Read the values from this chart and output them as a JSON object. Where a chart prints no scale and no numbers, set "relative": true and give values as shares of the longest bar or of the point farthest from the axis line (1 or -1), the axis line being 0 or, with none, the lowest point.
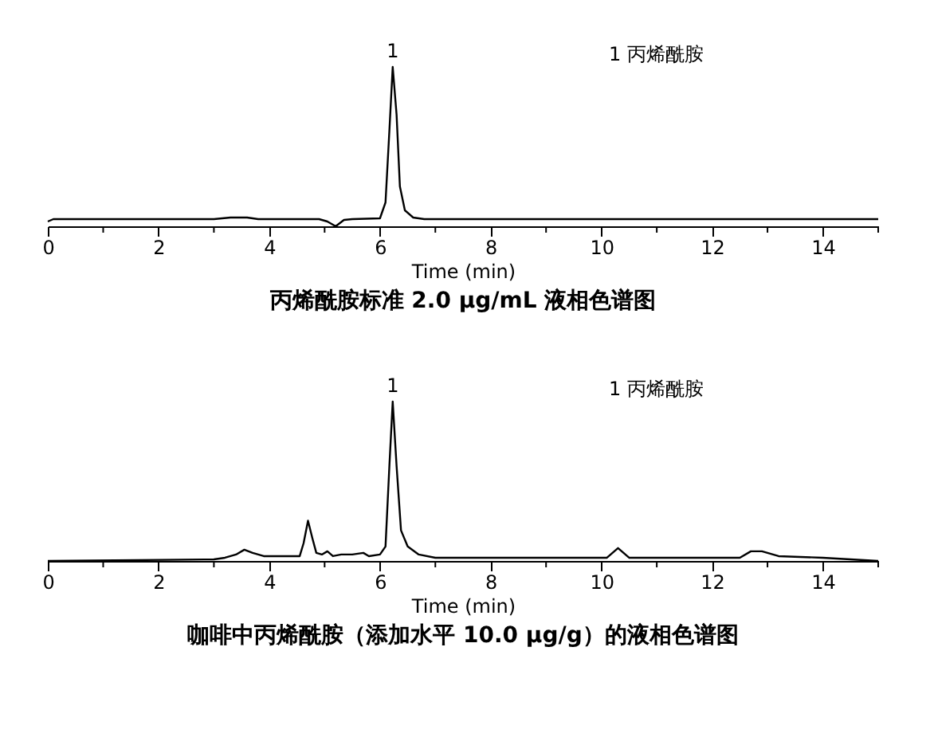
{
  "chart_data": [
    {
      "type": "line",
      "title": "丙烯酰胺标准 2.0 μg/mL 液相色谱图",
      "xlabel": "Time (min)",
      "relative": true,
      "xlim": [
        0,
        15
      ],
      "xticks": [
        0,
        {
          "value": 1,
          "label": null
        },
        2,
        {
          "value": 3,
          "label": null
        },
        4,
        {
          "value": 5,
          "label": null
        },
        6,
        {
          "value": 7,
          "label": null
        },
        8,
        {
          "value": 9,
          "label": null
        },
        10,
        {
          "value": 11,
          "label": null
        },
        12,
        {
          "value": 13,
          "label": null
        },
        14,
        {
          "value": 15,
          "label": null
        }
      ],
      "grid": false,
      "marker": "none",
      "line_style": "solid",
      "annotations": [
        {
          "text": "1",
          "x": 6.23,
          "y": 1
        },
        "1 丙烯酰胺"
      ],
      "series": [
        {
          "color": "#000000",
          "x": [
            0,
            0.1,
            3.0,
            3.3,
            3.6,
            3.8,
            4.9,
            5.05,
            5.2,
            5.35,
            5.5,
            6.0,
            6.1,
            6.17,
            6.23,
            6.3,
            6.36,
            6.45,
            6.6,
            6.8,
            15
          ],
          "values": [
            0.03,
            0.045,
            0.045,
            0.055,
            0.055,
            0.045,
            0.045,
            0.03,
            0,
            0.04,
            0.045,
            0.05,
            0.15,
            0.6,
            1,
            0.7,
            0.25,
            0.1,
            0.055,
            0.045,
            0.045
          ]
        }
      ]
    },
    {
      "type": "line",
      "title": "咖啡中丙烯酰胺（添加水平 10.0 μg/g）的液相色谱图",
      "xlabel": "Time (min)",
      "relative": true,
      "xlim": [
        0,
        15
      ],
      "xticks": [
        0,
        {
          "value": 1,
          "label": null
        },
        2,
        {
          "value": 3,
          "label": null
        },
        4,
        {
          "value": 5,
          "label": null
        },
        6,
        {
          "value": 7,
          "label": null
        },
        8,
        {
          "value": 9,
          "label": null
        },
        10,
        {
          "value": 11,
          "label": null
        },
        12,
        {
          "value": 13,
          "label": null
        },
        14,
        {
          "value": 15,
          "label": null
        }
      ],
      "grid": false,
      "marker": "none",
      "line_style": "solid",
      "annotations": [
        {
          "text": "1",
          "x": 6.23,
          "y": 1
        },
        "1 丙烯酰胺"
      ],
      "series": [
        {
          "color": "#000000",
          "x": [
            0,
            3.0,
            3.2,
            3.4,
            3.55,
            3.7,
            3.9,
            4.55,
            4.62,
            4.7,
            4.78,
            4.85,
            4.95,
            5.05,
            5.15,
            5.3,
            5.5,
            5.7,
            5.8,
            6.0,
            6.1,
            6.17,
            6.23,
            6.3,
            6.38,
            6.5,
            6.7,
            7,
            8,
            9,
            10.1,
            10.3,
            10.5,
            12.5,
            12.7,
            12.9,
            13.2,
            14,
            15
          ],
          "values": [
            0.01,
            0.02,
            0.03,
            0.05,
            0.08,
            0.06,
            0.04,
            0.04,
            0.12,
            0.26,
            0.15,
            0.06,
            0.05,
            0.07,
            0.04,
            0.05,
            0.05,
            0.06,
            0.04,
            0.05,
            0.1,
            0.6,
            1,
            0.6,
            0.2,
            0.1,
            0.05,
            0.03,
            0.03,
            0.03,
            0.03,
            0.09,
            0.03,
            0.03,
            0.07,
            0.07,
            0.04,
            0.03,
            0.01
          ]
        }
      ]
    }
  ]
}
